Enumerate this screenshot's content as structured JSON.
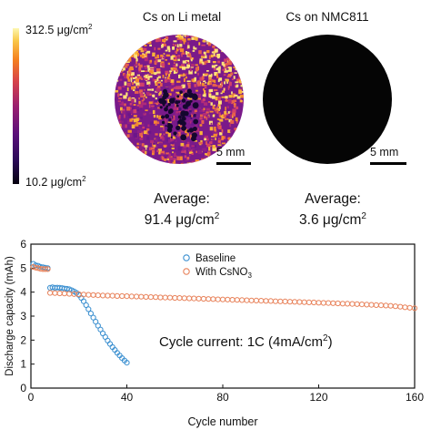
{
  "colorbar": {
    "max_label": "312.5 μg/cm",
    "min_label": "10.2 μg/cm",
    "sup": "2"
  },
  "panels": [
    {
      "title": "Cs on Li metal",
      "scale_label": "5 mm",
      "avg_label": "Average:",
      "avg_value": "91.4 μg/cm",
      "sup": "2"
    },
    {
      "title": "Cs on NMC811",
      "scale_label": "5 mm",
      "avg_label": "Average:",
      "avg_value": "3.6 μg/cm",
      "sup": "2"
    }
  ],
  "chart_data": {
    "type": "scatter",
    "xlabel": "Cycle number",
    "ylabel": "Discharge capacity (mAh)",
    "xlim": [
      0,
      160
    ],
    "ylim": [
      0,
      6
    ],
    "xticks": [
      0,
      40,
      80,
      120,
      160
    ],
    "yticks": [
      0,
      1,
      2,
      3,
      4,
      5,
      6
    ],
    "annotation": {
      "text": "Cycle current: 1C (4mA/cm",
      "sup": "2",
      "tail": ")"
    },
    "legend_position": "top-center",
    "series": [
      {
        "name": "Baseline",
        "color": "#3a8fd0",
        "points": [
          [
            1,
            5.18
          ],
          [
            2,
            5.12
          ],
          [
            3,
            5.1
          ],
          [
            4,
            5.06
          ],
          [
            5,
            5.04
          ],
          [
            6,
            5.02
          ],
          [
            7,
            5.0
          ],
          [
            8,
            4.18
          ],
          [
            9,
            4.2
          ],
          [
            10,
            4.18
          ],
          [
            11,
            4.19
          ],
          [
            12,
            4.18
          ],
          [
            13,
            4.17
          ],
          [
            14,
            4.15
          ],
          [
            15,
            4.14
          ],
          [
            16,
            4.12
          ],
          [
            17,
            4.08
          ],
          [
            18,
            4.03
          ],
          [
            19,
            3.97
          ],
          [
            20,
            3.88
          ],
          [
            21,
            3.76
          ],
          [
            22,
            3.62
          ],
          [
            23,
            3.46
          ],
          [
            24,
            3.29
          ],
          [
            25,
            3.11
          ],
          [
            26,
            2.94
          ],
          [
            27,
            2.77
          ],
          [
            28,
            2.6
          ],
          [
            29,
            2.44
          ],
          [
            30,
            2.28
          ],
          [
            31,
            2.13
          ],
          [
            32,
            1.98
          ],
          [
            33,
            1.84
          ],
          [
            34,
            1.71
          ],
          [
            35,
            1.59
          ],
          [
            36,
            1.47
          ],
          [
            37,
            1.36
          ],
          [
            38,
            1.25
          ],
          [
            39,
            1.15
          ],
          [
            40,
            1.06
          ]
        ]
      },
      {
        "name": "With CsNO",
        "name_sub": "3",
        "color": "#e8825a",
        "points": [
          [
            1,
            5.05
          ],
          [
            2,
            5.02
          ],
          [
            3,
            5.0
          ],
          [
            4,
            4.97
          ],
          [
            5,
            4.96
          ],
          [
            6,
            4.96
          ],
          [
            7,
            4.96
          ],
          [
            8,
            3.97
          ],
          [
            10,
            3.96
          ],
          [
            12,
            3.95
          ],
          [
            14,
            3.94
          ],
          [
            16,
            3.93
          ],
          [
            18,
            3.92
          ],
          [
            20,
            3.91
          ],
          [
            22,
            3.9
          ],
          [
            24,
            3.89
          ],
          [
            26,
            3.88
          ],
          [
            28,
            3.87
          ],
          [
            30,
            3.86
          ],
          [
            32,
            3.855
          ],
          [
            34,
            3.85
          ],
          [
            36,
            3.84
          ],
          [
            38,
            3.835
          ],
          [
            40,
            3.83
          ],
          [
            42,
            3.82
          ],
          [
            44,
            3.815
          ],
          [
            46,
            3.81
          ],
          [
            48,
            3.8
          ],
          [
            50,
            3.795
          ],
          [
            52,
            3.79
          ],
          [
            54,
            3.78
          ],
          [
            56,
            3.775
          ],
          [
            58,
            3.77
          ],
          [
            60,
            3.76
          ],
          [
            62,
            3.755
          ],
          [
            64,
            3.75
          ],
          [
            66,
            3.74
          ],
          [
            68,
            3.735
          ],
          [
            70,
            3.73
          ],
          [
            72,
            3.72
          ],
          [
            74,
            3.715
          ],
          [
            76,
            3.71
          ],
          [
            78,
            3.7
          ],
          [
            80,
            3.695
          ],
          [
            82,
            3.69
          ],
          [
            84,
            3.68
          ],
          [
            86,
            3.675
          ],
          [
            88,
            3.67
          ],
          [
            90,
            3.66
          ],
          [
            92,
            3.655
          ],
          [
            94,
            3.65
          ],
          [
            96,
            3.64
          ],
          [
            98,
            3.635
          ],
          [
            100,
            3.63
          ],
          [
            102,
            3.62
          ],
          [
            104,
            3.615
          ],
          [
            106,
            3.61
          ],
          [
            108,
            3.6
          ],
          [
            110,
            3.595
          ],
          [
            112,
            3.59
          ],
          [
            114,
            3.58
          ],
          [
            116,
            3.575
          ],
          [
            118,
            3.57
          ],
          [
            120,
            3.56
          ],
          [
            122,
            3.55
          ],
          [
            124,
            3.545
          ],
          [
            126,
            3.54
          ],
          [
            128,
            3.53
          ],
          [
            130,
            3.52
          ],
          [
            132,
            3.515
          ],
          [
            134,
            3.51
          ],
          [
            136,
            3.5
          ],
          [
            138,
            3.49
          ],
          [
            140,
            3.48
          ],
          [
            142,
            3.47
          ],
          [
            144,
            3.46
          ],
          [
            146,
            3.45
          ],
          [
            148,
            3.44
          ],
          [
            150,
            3.43
          ],
          [
            152,
            3.41
          ],
          [
            154,
            3.39
          ],
          [
            156,
            3.37
          ],
          [
            158,
            3.35
          ],
          [
            160,
            3.33
          ]
        ]
      }
    ]
  }
}
